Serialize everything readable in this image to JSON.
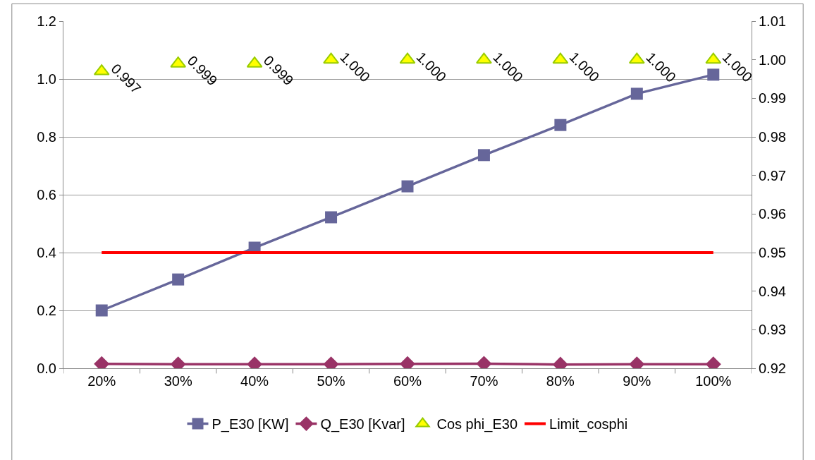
{
  "chart_data": {
    "type": "line",
    "categories": [
      "20%",
      "30%",
      "40%",
      "50%",
      "60%",
      "70%",
      "80%",
      "90%",
      "100%"
    ],
    "series": [
      {
        "name": "P_E30 [KW]",
        "color": "#66669a",
        "marker": "square",
        "values": [
          0.2,
          0.307,
          0.417,
          0.522,
          0.629,
          0.737,
          0.841,
          0.949,
          1.015
        ]
      },
      {
        "name": "Q_E30 [Kvar]",
        "color": "#993366",
        "marker": "diamond",
        "values": [
          0.015,
          0.014,
          0.014,
          0.014,
          0.015,
          0.016,
          0.013,
          0.014,
          0.014
        ]
      },
      {
        "name": "Cos phi_E30",
        "color": "#ffff00",
        "type": "scatter",
        "marker": "triangle",
        "axis": "y2",
        "values": [
          0.997,
          0.999,
          0.999,
          1.0,
          1.0,
          1.0,
          1.0,
          1.0,
          1.0
        ],
        "value_labels": [
          "0.997",
          "0.999",
          "0.999",
          "1.000",
          "1.000",
          "1.000",
          "1.000",
          "1.000",
          "1.000"
        ]
      },
      {
        "name": "Limit_cosphi",
        "color": "#ff0000",
        "marker": "none",
        "axis": "y2",
        "values": [
          0.95,
          0.95,
          0.95,
          0.95,
          0.95,
          0.95,
          0.95,
          0.95,
          0.95
        ]
      }
    ],
    "ylim": [
      0,
      1.2
    ],
    "yticks": [
      {
        "value": 0,
        "label": "0.0"
      },
      0.2,
      0.4,
      0.6,
      0.8,
      {
        "value": 1,
        "label": "1.0"
      },
      1.2
    ],
    "y2lim": [
      0.92,
      1.01
    ],
    "y2ticks": [
      0.92,
      0.93,
      0.94,
      0.95,
      0.96,
      0.97,
      0.98,
      0.99,
      {
        "value": 1.0,
        "label": "1.00"
      },
      1.01
    ],
    "grid": "y",
    "legend": "bottom"
  }
}
